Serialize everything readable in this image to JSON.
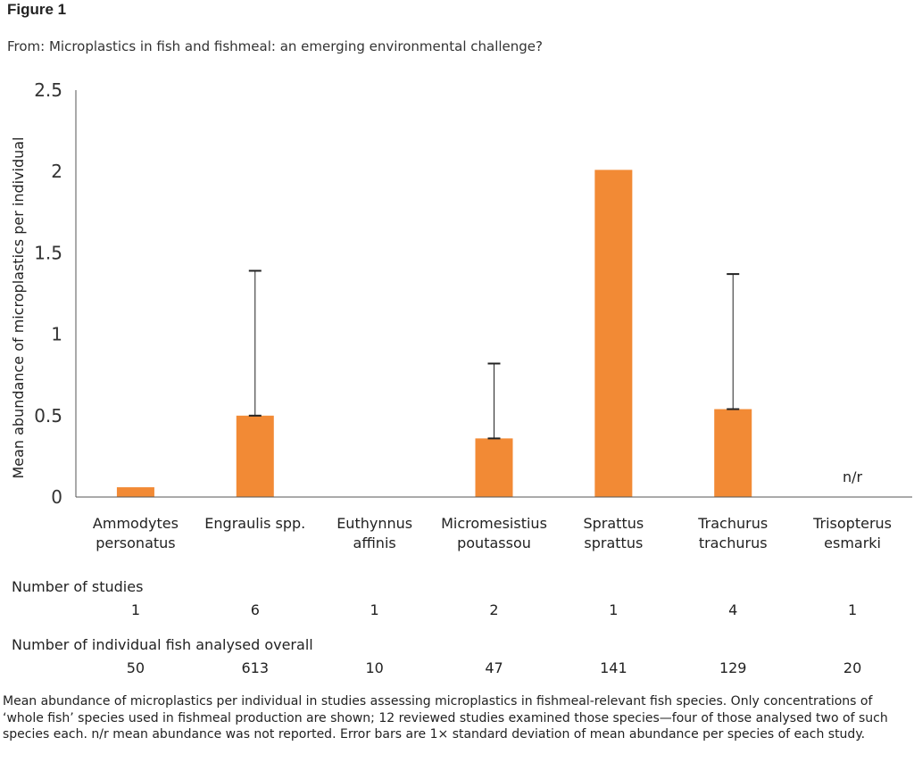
{
  "figure_label": "Figure 1",
  "from_text": "From: Microplastics in fish and fishmeal: an emerging environmental challenge?",
  "chart_data": {
    "type": "bar",
    "title": "",
    "xlabel": "",
    "ylabel": "Mean abundance of microplastics per individual",
    "ylim": [
      0,
      2.5
    ],
    "yticks": [
      0,
      0.5,
      1,
      1.5,
      2,
      2.5
    ],
    "ytick_labels": [
      "0",
      "0.5",
      "1",
      "1.5",
      "2",
      "2.5"
    ],
    "categories": [
      [
        "Ammodytes",
        "personatus"
      ],
      [
        "Engraulis spp."
      ],
      [
        "Euthynnus",
        "affinis"
      ],
      [
        "Micromesistius",
        "poutassou"
      ],
      [
        "Sprattus",
        "sprattus"
      ],
      [
        "Trachurus",
        "trachurus"
      ],
      [
        "Trisopterus",
        "esmarki"
      ]
    ],
    "values": [
      0.06,
      0.5,
      null,
      0.36,
      2.01,
      0.54,
      null
    ],
    "error_upper": [
      null,
      1.39,
      null,
      0.82,
      null,
      1.37,
      null
    ],
    "annotations": [
      {
        "category_index": 6,
        "text": "n/r"
      }
    ],
    "bar_color": "#f28a35",
    "grid": false
  },
  "table_rows": [
    {
      "title": "Number of studies",
      "values": [
        "1",
        "6",
        "1",
        "2",
        "1",
        "4",
        "1"
      ]
    },
    {
      "title": "Number of individual fish analysed overall",
      "values": [
        "50",
        "613",
        "10",
        "47",
        "141",
        "129",
        "20"
      ]
    }
  ],
  "caption": "Mean abundance of microplastics per individual in studies assessing microplastics in fishmeal-relevant fish species. Only concentrations of ‘whole fish’ species used in fishmeal production are shown; 12 reviewed studies examined those species—four of those analysed two of such species each. n/r mean abundance was not reported. Error bars are 1× standard deviation of mean abundance per species of each study."
}
